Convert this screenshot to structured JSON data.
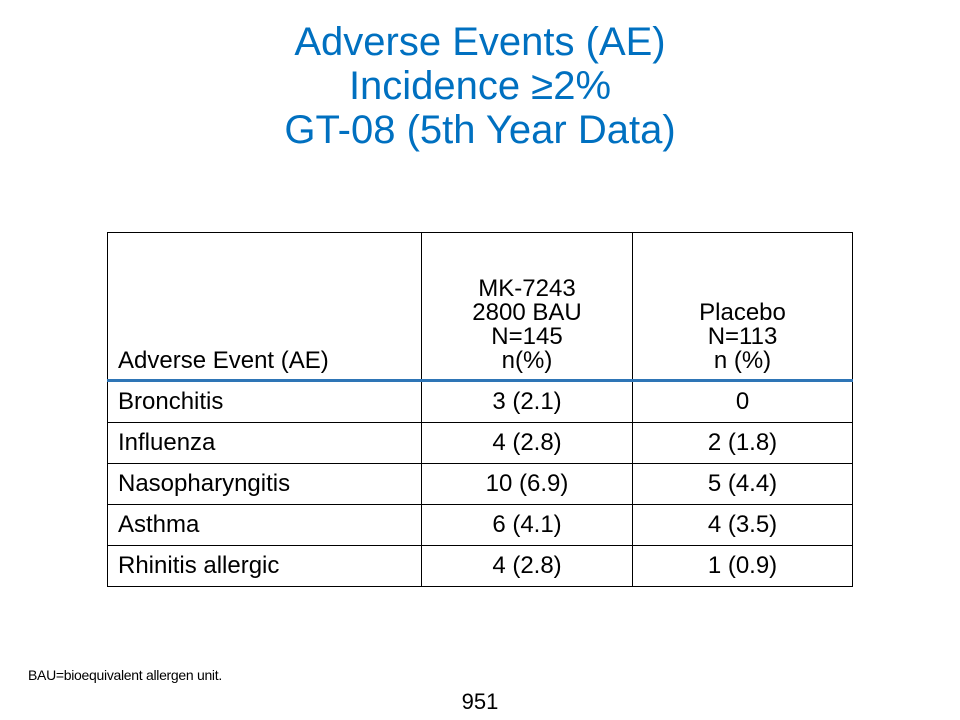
{
  "title": {
    "line1": "Adverse Events (AE)",
    "line2": "Incidence ≥2%",
    "line3": "GT-08 (5th Year Data)"
  },
  "table": {
    "header": {
      "event": "Adverse Event (AE)",
      "mk": [
        "MK-7243",
        "2800 BAU",
        "N=145",
        "n(%)"
      ],
      "placebo": [
        "Placebo",
        "N=113",
        "n (%)"
      ]
    },
    "rows": [
      {
        "event": "Bronchitis",
        "mk": "3 (2.1)",
        "placebo": "0"
      },
      {
        "event": "Influenza",
        "mk": "4 (2.8)",
        "placebo": "2 (1.8)"
      },
      {
        "event": "Nasopharyngitis",
        "mk": "10 (6.9)",
        "placebo": "5 (4.4)"
      },
      {
        "event": "Asthma",
        "mk": "6 (4.1)",
        "placebo": "4 (3.5)"
      },
      {
        "event": "Rhinitis allergic",
        "mk": "4 (2.8)",
        "placebo": "1 (0.9)"
      }
    ]
  },
  "footnote": "BAU=bioequivalent allergen unit.",
  "page_number": "951",
  "colors": {
    "title": "#0070c0",
    "header_rule": "#2e75b6"
  }
}
